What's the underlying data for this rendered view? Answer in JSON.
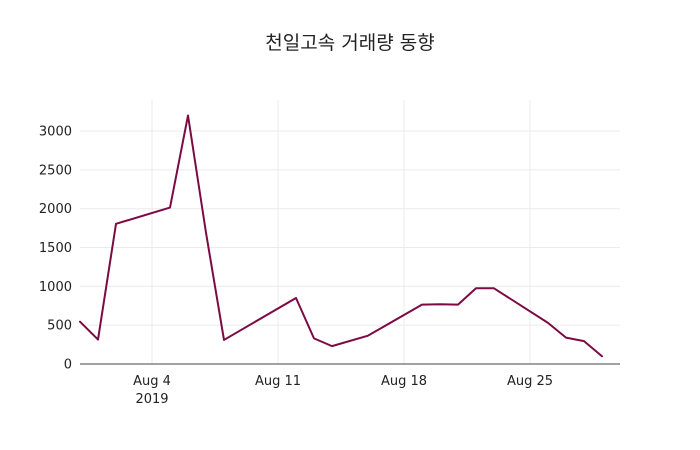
{
  "chart_data": {
    "type": "line",
    "title": "천일고속 거래량 동향",
    "xlabel": "",
    "ylabel": "",
    "grid": true,
    "legend": "none",
    "x_range": [
      "2019-07-31",
      "2019-08-30"
    ],
    "ylim": [
      0,
      3400
    ],
    "x_ticks": [
      {
        "date": "2019-08-04",
        "label": "Aug 4",
        "sublabel": "2019"
      },
      {
        "date": "2019-08-11",
        "label": "Aug 11",
        "sublabel": ""
      },
      {
        "date": "2019-08-18",
        "label": "Aug 18",
        "sublabel": ""
      },
      {
        "date": "2019-08-25",
        "label": "Aug 25",
        "sublabel": ""
      }
    ],
    "y_ticks": [
      0,
      500,
      1000,
      1500,
      2000,
      2500,
      3000
    ],
    "series": [
      {
        "name": "",
        "color": "#7b0a45",
        "points": [
          {
            "x": "2019-07-31",
            "y": 545
          },
          {
            "x": "2019-08-01",
            "y": 315
          },
          {
            "x": "2019-08-02",
            "y": 1805
          },
          {
            "x": "2019-08-05",
            "y": 2015
          },
          {
            "x": "2019-08-06",
            "y": 3200
          },
          {
            "x": "2019-08-07",
            "y": 1690
          },
          {
            "x": "2019-08-08",
            "y": 310
          },
          {
            "x": "2019-08-12",
            "y": 850
          },
          {
            "x": "2019-08-13",
            "y": 330
          },
          {
            "x": "2019-08-14",
            "y": 230
          },
          {
            "x": "2019-08-16",
            "y": 365
          },
          {
            "x": "2019-08-19",
            "y": 765
          },
          {
            "x": "2019-08-20",
            "y": 770
          },
          {
            "x": "2019-08-21",
            "y": 765
          },
          {
            "x": "2019-08-22",
            "y": 975
          },
          {
            "x": "2019-08-23",
            "y": 975
          },
          {
            "x": "2019-08-26",
            "y": 530
          },
          {
            "x": "2019-08-27",
            "y": 340
          },
          {
            "x": "2019-08-28",
            "y": 295
          },
          {
            "x": "2019-08-29",
            "y": 100
          }
        ]
      }
    ]
  }
}
